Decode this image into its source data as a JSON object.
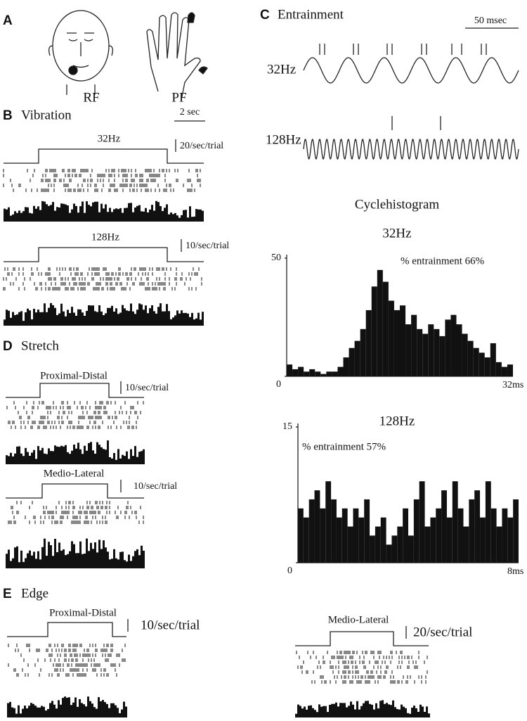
{
  "panels": {
    "A": {
      "label": "A",
      "faces": [
        "RF",
        "PF"
      ]
    },
    "B": {
      "label": "B",
      "title": "Vibration",
      "time_scale": "2 sec",
      "conditions": [
        {
          "name": "32Hz",
          "scale": "20/sec/trial"
        },
        {
          "name": "128Hz",
          "scale": "10/sec/trial"
        }
      ]
    },
    "C": {
      "label": "C",
      "title": "Entrainment",
      "time_scale": "50 msec",
      "traces": [
        "32Hz",
        "128Hz"
      ],
      "cyclehistogram_title": "Cyclehistogram",
      "cyclehistograms": [
        {
          "title": "32Hz",
          "annotation": "% entrainment 66%",
          "ylim": [
            0,
            50
          ],
          "yticks": [
            0,
            50
          ],
          "x_end_label": "32ms",
          "values": [
            5,
            3,
            4,
            2,
            3,
            2,
            1,
            2,
            2,
            4,
            8,
            12,
            15,
            20,
            28,
            38,
            45,
            40,
            32,
            28,
            30,
            22,
            26,
            20,
            18,
            22,
            20,
            17,
            24,
            26,
            22,
            18,
            15,
            12,
            10,
            8,
            14,
            6,
            4,
            5
          ]
        },
        {
          "title": "128Hz",
          "annotation": "% entrainment  57%",
          "ylim": [
            0,
            15
          ],
          "yticks": [
            0,
            15
          ],
          "x_end_label": "8ms",
          "values": [
            6,
            5,
            7,
            8,
            6,
            9,
            7,
            5,
            6,
            4,
            6,
            5,
            7,
            3,
            4,
            5,
            2,
            3,
            4,
            6,
            3,
            7,
            9,
            4,
            5,
            6,
            8,
            5,
            9,
            6,
            4,
            7,
            8,
            5,
            9,
            6,
            4,
            6,
            5,
            7
          ]
        }
      ]
    },
    "D": {
      "label": "D",
      "title": "Stretch",
      "conditions": [
        {
          "name": "Proximal-Distal",
          "scale": "10/sec/trial"
        },
        {
          "name": "Medio-Lateral",
          "scale": "10/sec/trial"
        }
      ]
    },
    "E": {
      "label": "E",
      "title": "Edge",
      "conditions": [
        {
          "name": "Proximal-Distal",
          "scale": "10/sec/trial"
        },
        {
          "name": "Medio-Lateral",
          "scale": "20/sec/trial"
        }
      ]
    }
  }
}
